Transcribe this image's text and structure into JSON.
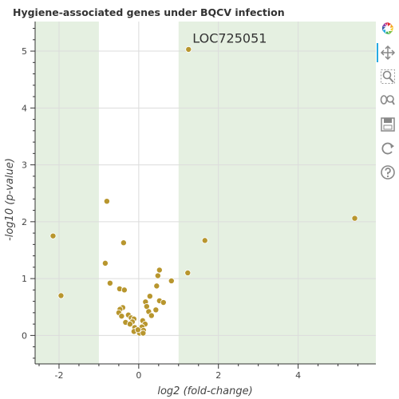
{
  "chart_data": {
    "type": "scatter",
    "title": "Hygiene-associated genes under BQCV infection",
    "xlabel": "log2 (fold-change)",
    "ylabel": "-log10 (p-value)",
    "xlim": [
      -2.6,
      5.95
    ],
    "ylim": [
      -0.5,
      5.52
    ],
    "xticks": [
      -2,
      0,
      2,
      4
    ],
    "yticks": [
      0,
      1,
      2,
      3,
      4,
      5
    ],
    "shaded_x_regions": [
      [
        -2.6,
        -1
      ],
      [
        1,
        5.95
      ]
    ],
    "shade_color": "#e5f0e1",
    "point_color": "#b8962e",
    "grid": true,
    "annotations": [
      {
        "text": "LOC725051",
        "x": 1.35,
        "y": 5.15
      }
    ],
    "points": [
      {
        "x": 1.25,
        "y": 5.03
      },
      {
        "x": 5.42,
        "y": 2.06
      },
      {
        "x": 1.66,
        "y": 1.67
      },
      {
        "x": 1.23,
        "y": 1.1
      },
      {
        "x": -0.8,
        "y": 2.36
      },
      {
        "x": -2.15,
        "y": 1.75
      },
      {
        "x": -0.38,
        "y": 1.63
      },
      {
        "x": -0.84,
        "y": 1.27
      },
      {
        "x": -1.95,
        "y": 0.7
      },
      {
        "x": -0.72,
        "y": 0.92
      },
      {
        "x": 0.52,
        "y": 1.15
      },
      {
        "x": 0.48,
        "y": 1.05
      },
      {
        "x": 0.82,
        "y": 0.96
      },
      {
        "x": 0.45,
        "y": 0.87
      },
      {
        "x": -0.48,
        "y": 0.82
      },
      {
        "x": -0.36,
        "y": 0.8
      },
      {
        "x": 0.28,
        "y": 0.69
      },
      {
        "x": 0.52,
        "y": 0.61
      },
      {
        "x": 0.62,
        "y": 0.58
      },
      {
        "x": 0.17,
        "y": 0.59
      },
      {
        "x": 0.2,
        "y": 0.51
      },
      {
        "x": -0.4,
        "y": 0.49
      },
      {
        "x": -0.47,
        "y": 0.46
      },
      {
        "x": 0.43,
        "y": 0.45
      },
      {
        "x": -0.5,
        "y": 0.4
      },
      {
        "x": 0.25,
        "y": 0.42
      },
      {
        "x": -0.26,
        "y": 0.36
      },
      {
        "x": -0.43,
        "y": 0.34
      },
      {
        "x": 0.32,
        "y": 0.35
      },
      {
        "x": -0.19,
        "y": 0.31
      },
      {
        "x": -0.33,
        "y": 0.23
      },
      {
        "x": -0.12,
        "y": 0.29
      },
      {
        "x": -0.16,
        "y": 0.24
      },
      {
        "x": 0.1,
        "y": 0.26
      },
      {
        "x": 0.16,
        "y": 0.2
      },
      {
        "x": -0.22,
        "y": 0.2
      },
      {
        "x": -0.1,
        "y": 0.14
      },
      {
        "x": 0.08,
        "y": 0.15
      },
      {
        "x": -0.05,
        "y": 0.09
      },
      {
        "x": 0.12,
        "y": 0.09
      },
      {
        "x": -0.12,
        "y": 0.07
      },
      {
        "x": 0.02,
        "y": 0.04
      },
      {
        "x": 0.11,
        "y": 0.04
      },
      {
        "x": -0.02,
        "y": 0.1
      }
    ]
  },
  "toolbar": {
    "items": [
      {
        "icon": "bokeh-logo-icon",
        "label": ""
      },
      {
        "icon": "pan-icon",
        "label": ""
      },
      {
        "icon": "box-zoom-icon",
        "label": ""
      },
      {
        "icon": "wheel-zoom-icon",
        "label": ""
      },
      {
        "icon": "save-icon",
        "label": ""
      },
      {
        "icon": "reset-icon",
        "label": ""
      },
      {
        "icon": "help-icon",
        "label": ""
      }
    ]
  }
}
